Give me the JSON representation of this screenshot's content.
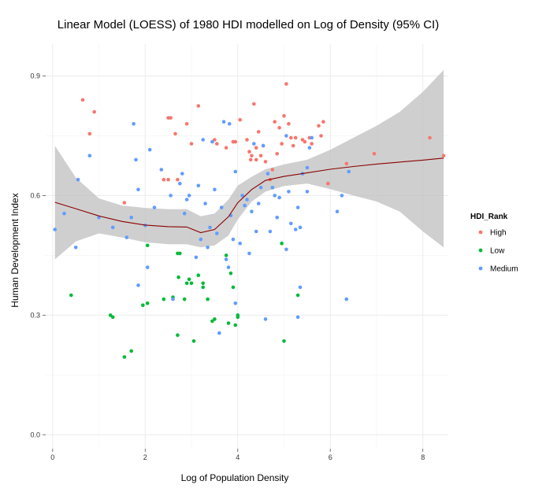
{
  "chart_data": {
    "type": "scatter",
    "title": "Linear Model (LOESS) of 1980 HDI modelled on Log of Density (95% CI)",
    "xlabel": "Log of Population Density",
    "ylabel": "Human Development Index",
    "xlim": [
      -0.15,
      8.55
    ],
    "ylim": [
      -0.035,
      0.98
    ],
    "x_ticks": [
      0,
      2,
      4,
      6,
      8
    ],
    "y_ticks": [
      0.0,
      0.3,
      0.6,
      0.9
    ],
    "y_tick_labels": [
      "0.0",
      "0.3",
      "0.6",
      "0.9"
    ],
    "grid": true,
    "legend": {
      "title": "HDI_Rank",
      "placement": "right"
    },
    "series": [
      {
        "name": "High",
        "color": "#F8766D",
        "points": [
          [
            0.65,
            0.84
          ],
          [
            0.8,
            0.755
          ],
          [
            0.9,
            0.81
          ],
          [
            1.55,
            0.582
          ],
          [
            2.5,
            0.795
          ],
          [
            2.55,
            0.795
          ],
          [
            2.4,
            0.64
          ],
          [
            2.5,
            0.64
          ],
          [
            2.7,
            0.64
          ],
          [
            2.65,
            0.755
          ],
          [
            2.9,
            0.78
          ],
          [
            3.0,
            0.73
          ],
          [
            3.15,
            0.825
          ],
          [
            3.5,
            0.74
          ],
          [
            3.55,
            0.73
          ],
          [
            3.75,
            0.72
          ],
          [
            3.9,
            0.735
          ],
          [
            3.95,
            0.735
          ],
          [
            4.05,
            0.79
          ],
          [
            4.2,
            0.74
          ],
          [
            4.25,
            0.71
          ],
          [
            4.28,
            0.69
          ],
          [
            4.3,
            0.7
          ],
          [
            4.35,
            0.83
          ],
          [
            4.4,
            0.72
          ],
          [
            4.4,
            0.69
          ],
          [
            4.45,
            0.76
          ],
          [
            4.5,
            0.7
          ],
          [
            4.55,
            0.725
          ],
          [
            4.6,
            0.685
          ],
          [
            4.7,
            0.64
          ],
          [
            4.75,
            0.665
          ],
          [
            4.8,
            0.785
          ],
          [
            4.85,
            0.705
          ],
          [
            4.9,
            0.77
          ],
          [
            4.95,
            0.73
          ],
          [
            5.0,
            0.8
          ],
          [
            5.05,
            0.88
          ],
          [
            5.1,
            0.78
          ],
          [
            5.15,
            0.745
          ],
          [
            5.2,
            0.725
          ],
          [
            5.25,
            0.745
          ],
          [
            5.4,
            0.74
          ],
          [
            5.45,
            0.735
          ],
          [
            5.55,
            0.745
          ],
          [
            5.6,
            0.73
          ],
          [
            5.75,
            0.775
          ],
          [
            5.8,
            0.75
          ],
          [
            5.85,
            0.785
          ],
          [
            5.95,
            0.63
          ],
          [
            6.35,
            0.68
          ],
          [
            6.95,
            0.705
          ],
          [
            8.15,
            0.745
          ],
          [
            8.45,
            0.7
          ]
        ]
      },
      {
        "name": "Low",
        "color": "#00BA38",
        "points": [
          [
            0.4,
            0.35
          ],
          [
            1.25,
            0.3
          ],
          [
            1.3,
            0.295
          ],
          [
            1.55,
            0.195
          ],
          [
            1.7,
            0.21
          ],
          [
            1.95,
            0.325
          ],
          [
            2.05,
            0.33
          ],
          [
            2.05,
            0.475
          ],
          [
            2.4,
            0.34
          ],
          [
            2.6,
            0.345
          ],
          [
            2.7,
            0.455
          ],
          [
            2.72,
            0.395
          ],
          [
            2.75,
            0.455
          ],
          [
            2.85,
            0.34
          ],
          [
            2.9,
            0.38
          ],
          [
            2.95,
            0.39
          ],
          [
            3.0,
            0.38
          ],
          [
            3.05,
            0.235
          ],
          [
            3.15,
            0.4
          ],
          [
            3.25,
            0.38
          ],
          [
            3.25,
            0.37
          ],
          [
            3.35,
            0.34
          ],
          [
            3.45,
            0.285
          ],
          [
            3.5,
            0.29
          ],
          [
            3.75,
            0.45
          ],
          [
            3.8,
            0.28
          ],
          [
            3.85,
            0.405
          ],
          [
            3.9,
            0.37
          ],
          [
            3.95,
            0.275
          ],
          [
            4.0,
            0.3
          ],
          [
            4.0,
            0.295
          ],
          [
            4.95,
            0.48
          ],
          [
            5.0,
            0.235
          ],
          [
            5.3,
            0.35
          ],
          [
            2.7,
            0.25
          ]
        ]
      },
      {
        "name": "Medium",
        "color": "#619CFF",
        "points": [
          [
            0.05,
            0.515
          ],
          [
            0.25,
            0.555
          ],
          [
            0.55,
            0.64
          ],
          [
            0.5,
            0.47
          ],
          [
            0.8,
            0.7
          ],
          [
            1.0,
            0.545
          ],
          [
            1.3,
            0.52
          ],
          [
            1.6,
            0.495
          ],
          [
            1.7,
            0.545
          ],
          [
            1.75,
            0.78
          ],
          [
            1.8,
            0.69
          ],
          [
            1.85,
            0.375
          ],
          [
            1.85,
            0.615
          ],
          [
            2.0,
            0.525
          ],
          [
            2.05,
            0.42
          ],
          [
            2.1,
            0.715
          ],
          [
            2.2,
            0.57
          ],
          [
            2.35,
            0.665
          ],
          [
            2.55,
            0.6
          ],
          [
            2.6,
            0.34
          ],
          [
            2.75,
            0.63
          ],
          [
            2.8,
            0.655
          ],
          [
            2.85,
            0.555
          ],
          [
            2.9,
            0.59
          ],
          [
            2.95,
            0.6
          ],
          [
            3.1,
            0.445
          ],
          [
            3.15,
            0.625
          ],
          [
            3.2,
            0.49
          ],
          [
            3.25,
            0.74
          ],
          [
            3.3,
            0.58
          ],
          [
            3.35,
            0.47
          ],
          [
            3.4,
            0.52
          ],
          [
            3.45,
            0.735
          ],
          [
            3.5,
            0.615
          ],
          [
            3.55,
            0.505
          ],
          [
            3.6,
            0.255
          ],
          [
            3.65,
            0.57
          ],
          [
            3.7,
            0.785
          ],
          [
            3.75,
            0.44
          ],
          [
            3.8,
            0.42
          ],
          [
            3.82,
            0.78
          ],
          [
            3.85,
            0.55
          ],
          [
            3.9,
            0.49
          ],
          [
            3.95,
            0.33
          ],
          [
            3.95,
            0.66
          ],
          [
            4.05,
            0.48
          ],
          [
            4.1,
            0.6
          ],
          [
            4.15,
            0.575
          ],
          [
            4.2,
            0.59
          ],
          [
            4.25,
            0.455
          ],
          [
            4.3,
            0.56
          ],
          [
            4.35,
            0.73
          ],
          [
            4.4,
            0.51
          ],
          [
            4.45,
            0.58
          ],
          [
            4.5,
            0.62
          ],
          [
            4.55,
            0.725
          ],
          [
            4.6,
            0.29
          ],
          [
            4.65,
            0.655
          ],
          [
            4.7,
            0.51
          ],
          [
            4.75,
            0.62
          ],
          [
            4.8,
            0.6
          ],
          [
            4.85,
            0.545
          ],
          [
            4.9,
            0.595
          ],
          [
            5.05,
            0.465
          ],
          [
            5.1,
            0.61
          ],
          [
            5.15,
            0.53
          ],
          [
            5.25,
            0.515
          ],
          [
            5.3,
            0.57
          ],
          [
            5.35,
            0.52
          ],
          [
            5.4,
            0.655
          ],
          [
            5.5,
            0.61
          ],
          [
            5.5,
            0.67
          ],
          [
            5.55,
            0.72
          ],
          [
            5.6,
            0.745
          ],
          [
            5.3,
            0.295
          ],
          [
            5.35,
            0.37
          ],
          [
            6.15,
            0.56
          ],
          [
            6.25,
            0.6
          ],
          [
            6.35,
            0.34
          ],
          [
            6.4,
            0.66
          ],
          [
            5.05,
            0.75
          ]
        ]
      }
    ],
    "loess_fit": {
      "color": "#8B0000",
      "band_color": "#bfbfbf",
      "x": [
        0.05,
        0.5,
        1.0,
        1.5,
        2.0,
        2.5,
        2.9,
        3.2,
        3.5,
        3.8,
        4.0,
        4.3,
        4.6,
        5.0,
        5.5,
        6.0,
        6.5,
        7.0,
        7.5,
        8.0,
        8.45
      ],
      "fit": [
        0.583,
        0.567,
        0.549,
        0.535,
        0.526,
        0.522,
        0.521,
        0.507,
        0.515,
        0.547,
        0.582,
        0.615,
        0.638,
        0.648,
        0.657,
        0.666,
        0.673,
        0.679,
        0.684,
        0.689,
        0.694
      ],
      "lower": [
        0.44,
        0.485,
        0.505,
        0.495,
        0.483,
        0.478,
        0.478,
        0.47,
        0.475,
        0.5,
        0.54,
        0.585,
        0.61,
        0.624,
        0.63,
        0.616,
        0.6,
        0.585,
        0.56,
        0.51,
        0.47
      ],
      "upper": [
        0.725,
        0.645,
        0.593,
        0.575,
        0.569,
        0.566,
        0.566,
        0.548,
        0.555,
        0.59,
        0.625,
        0.647,
        0.666,
        0.678,
        0.69,
        0.715,
        0.745,
        0.775,
        0.81,
        0.86,
        0.915
      ]
    }
  }
}
